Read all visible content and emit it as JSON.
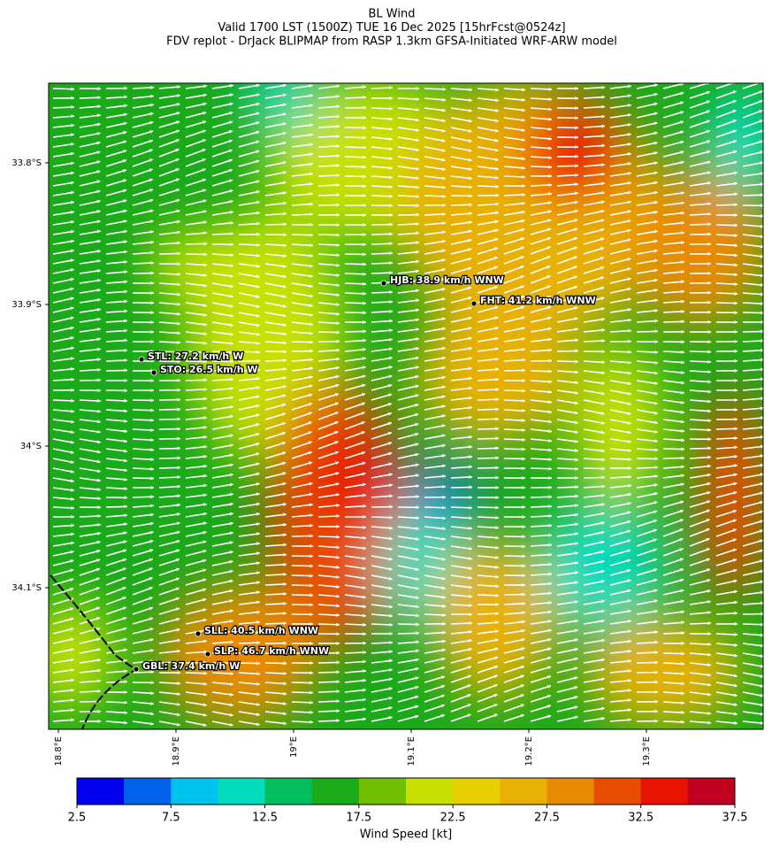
{
  "header": {
    "title_lines": [
      "BL Wind",
      "Valid 1700 LST (1500Z) TUE 16 Dec 2025 [15hrFcst@0524z]",
      "FDV replot - DrJack BLIPMAP from RASP 1.3km GFSA-Initiated WRF-ARW model"
    ]
  },
  "map": {
    "lat_labels": [
      "33.8°S",
      "33.9°S",
      "34°S",
      "34.1°S"
    ],
    "lon_labels": [
      "18.8°E",
      "18.9°E",
      "19°E",
      "19.1°E",
      "19.2°E",
      "19.3°E"
    ],
    "stations": [
      {
        "label": "HJB: 38.9 km/h WNW"
      },
      {
        "label": "FHT: 41.2 km/h WNW"
      },
      {
        "label": "STL: 27.2 km/h W"
      },
      {
        "label": "STO: 26.5 km/h W"
      },
      {
        "label": "SLL: 40.5 km/h WNW"
      },
      {
        "label": "SLP: 46.7 km/h WNW"
      },
      {
        "label": "GBL: 37.4 km/h W"
      }
    ]
  },
  "colorbar": {
    "label": "Wind Speed [kt]",
    "lim": [
      2.5,
      37.5
    ],
    "ticks": [
      2.5,
      7.5,
      12.5,
      17.5,
      22.5,
      27.5,
      32.5,
      37.5
    ],
    "colors": [
      "#0000ee",
      "#0062ea",
      "#00c2ee",
      "#00dcbc",
      "#00be5e",
      "#1aaa1a",
      "#70c000",
      "#c6e000",
      "#e8d000",
      "#e8b000",
      "#e88a00",
      "#e84c00",
      "#e81200",
      "#c0001e"
    ]
  }
}
